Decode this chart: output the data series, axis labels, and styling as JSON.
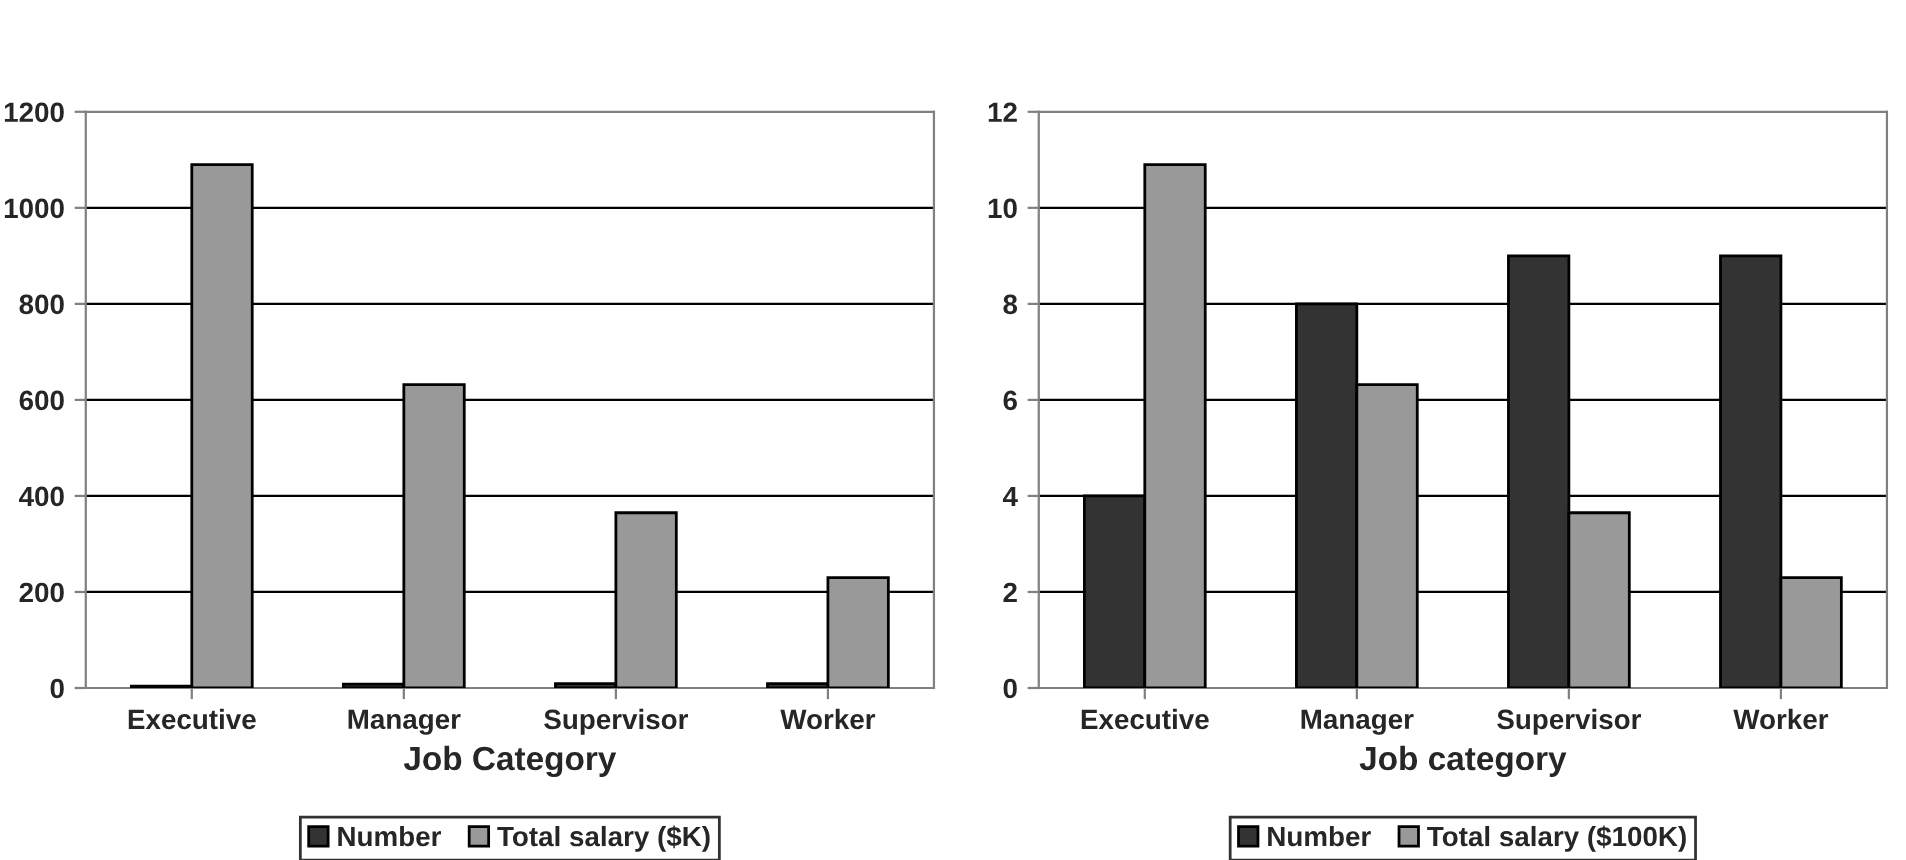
{
  "chart_data": [
    {
      "type": "bar",
      "xlabel": "Job Category",
      "categories": [
        "Executive",
        "Manager",
        "Supervisor",
        "Worker"
      ],
      "series": [
        {
          "name": "Number",
          "color": "#333333",
          "values": [
            4,
            8,
            9,
            9
          ]
        },
        {
          "name": "Total salary ($K)",
          "color": "#999999",
          "values": [
            1090,
            632,
            365,
            230
          ]
        }
      ],
      "ylim": [
        0,
        1200
      ],
      "yticks": [
        0,
        200,
        400,
        600,
        800,
        1000,
        1200
      ],
      "grid": "y",
      "legend": "bottom"
    },
    {
      "type": "bar",
      "xlabel": "Job category",
      "categories": [
        "Executive",
        "Manager",
        "Supervisor",
        "Worker"
      ],
      "series": [
        {
          "name": "Number",
          "color": "#333333",
          "values": [
            4,
            8,
            9,
            9
          ]
        },
        {
          "name": "Total salary ($100K)",
          "color": "#999999",
          "values": [
            10.9,
            6.32,
            3.65,
            2.3
          ]
        }
      ],
      "ylim": [
        0,
        12
      ],
      "yticks": [
        0,
        2,
        4,
        6,
        8,
        10,
        12
      ],
      "grid": "y",
      "legend": "bottom"
    }
  ]
}
